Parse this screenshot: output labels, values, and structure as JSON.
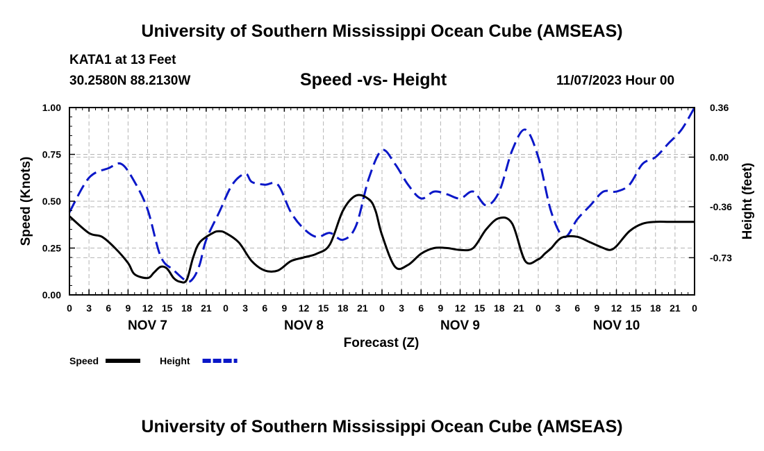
{
  "page": {
    "title_top": "University of Southern Mississippi Ocean Cube (AMSEAS)",
    "station": "KATA1 at 13 Feet",
    "coords": "30.2580N  88.2130W",
    "chart_title": "Speed -vs- Height",
    "datetime": "11/07/2023 Hour 00",
    "title_bottom": "University of Southern Mississippi Ocean Cube (AMSEAS)"
  },
  "chart_data": {
    "type": "line",
    "title": "Speed -vs- Height",
    "xlabel": "Forecast (Z)",
    "ylabel": "Speed (Knots)",
    "y2label": "Height (feet)",
    "xlim": [
      0,
      96
    ],
    "ylim": [
      0,
      1
    ],
    "y2lim": [
      -1.0,
      0.36
    ],
    "x_tick_labels": [
      "0",
      "3",
      "6",
      "9",
      "12",
      "15",
      "18",
      "21",
      "0",
      "3",
      "6",
      "9",
      "12",
      "15",
      "18",
      "21",
      "0",
      "3",
      "6",
      "9",
      "12",
      "15",
      "18",
      "21",
      "0",
      "3",
      "6",
      "9",
      "12",
      "15",
      "18",
      "21",
      "0"
    ],
    "day_labels": [
      {
        "label": "NOV 7",
        "x": 12
      },
      {
        "label": "NOV 8",
        "x": 36
      },
      {
        "label": "NOV 9",
        "x": 60
      },
      {
        "label": "NOV 10",
        "x": 84
      }
    ],
    "y_ticks": [
      {
        "value": 0.0,
        "label": "0.00"
      },
      {
        "value": 0.25,
        "label": "0.25"
      },
      {
        "value": 0.5,
        "label": "0.50"
      },
      {
        "value": 0.75,
        "label": "0.75"
      },
      {
        "value": 1.0,
        "label": "1.00"
      }
    ],
    "y2_ticks": [
      {
        "value": 0.36,
        "label": "0.36"
      },
      {
        "value": 0.0,
        "label": "0.00"
      },
      {
        "value": -0.36,
        "label": "-0.36"
      },
      {
        "value": -0.73,
        "label": "-0.73"
      }
    ],
    "grid": true,
    "legend_position": "bottom-left",
    "series": [
      {
        "name": "Speed",
        "axis": "left",
        "color": "#000000",
        "style": "solid",
        "x": [
          0,
          3,
          5,
          7,
          9,
          10,
          12,
          13,
          14,
          15,
          16,
          17,
          18,
          19,
          20,
          22,
          23,
          24,
          26,
          28,
          30,
          32,
          34,
          36,
          38,
          40,
          42,
          44,
          46,
          47,
          48,
          50,
          52,
          54,
          56,
          58,
          60,
          62,
          64,
          66,
          68,
          70,
          72,
          73,
          74,
          75,
          76,
          78,
          80,
          82,
          83,
          84,
          86,
          88,
          90,
          92,
          94,
          96
        ],
        "values": [
          0.42,
          0.33,
          0.31,
          0.25,
          0.17,
          0.11,
          0.09,
          0.12,
          0.15,
          0.14,
          0.09,
          0.07,
          0.08,
          0.2,
          0.28,
          0.33,
          0.34,
          0.33,
          0.28,
          0.18,
          0.13,
          0.13,
          0.18,
          0.2,
          0.22,
          0.27,
          0.45,
          0.53,
          0.51,
          0.45,
          0.32,
          0.15,
          0.16,
          0.22,
          0.25,
          0.25,
          0.24,
          0.25,
          0.35,
          0.41,
          0.38,
          0.18,
          0.19,
          0.22,
          0.25,
          0.29,
          0.31,
          0.31,
          0.28,
          0.25,
          0.24,
          0.26,
          0.34,
          0.38,
          0.39,
          0.39,
          0.39,
          0.39
        ]
      },
      {
        "name": "Height",
        "axis": "right",
        "color": "#0a17c8",
        "style": "dashed",
        "x": [
          0,
          3,
          6,
          8,
          10,
          12,
          14,
          16,
          18,
          19,
          20,
          21,
          23,
          25,
          27,
          28,
          30,
          32,
          34,
          36,
          38,
          40,
          42,
          44,
          46,
          48,
          50,
          52,
          54,
          56,
          58,
          60,
          62,
          64,
          66,
          68,
          70,
          72,
          74,
          76,
          78,
          80,
          82,
          84,
          86,
          88,
          90,
          92,
          94,
          96
        ],
        "values": [
          -0.4,
          -0.15,
          -0.08,
          -0.05,
          -0.18,
          -0.38,
          -0.72,
          -0.82,
          -0.9,
          -0.88,
          -0.78,
          -0.6,
          -0.4,
          -0.2,
          -0.12,
          -0.18,
          -0.2,
          -0.2,
          -0.4,
          -0.52,
          -0.58,
          -0.55,
          -0.6,
          -0.5,
          -0.15,
          0.05,
          -0.05,
          -0.2,
          -0.3,
          -0.25,
          -0.27,
          -0.3,
          -0.25,
          -0.35,
          -0.25,
          0.05,
          0.2,
          0.0,
          -0.4,
          -0.58,
          -0.45,
          -0.35,
          -0.25,
          -0.25,
          -0.2,
          -0.05,
          0.0,
          0.1,
          0.2,
          0.36
        ]
      }
    ]
  }
}
